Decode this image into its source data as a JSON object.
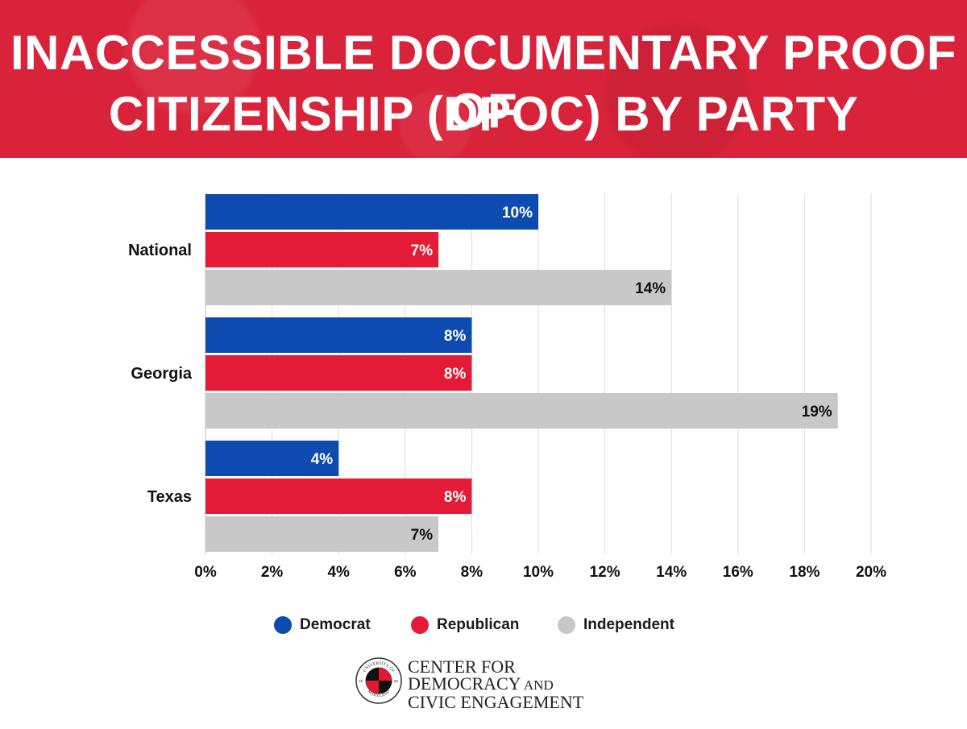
{
  "header": {
    "title_line1": "INACCESSIBLE DOCUMENTARY PROOF OF",
    "title_line2": "CITIZENSHIP (DPOC) BY PARTY"
  },
  "chart_data": {
    "type": "bar",
    "orientation": "horizontal",
    "title": "INACCESSIBLE DOCUMENTARY PROOF OF CITIZENSHIP (DPOC) BY PARTY",
    "categories": [
      "National",
      "Georgia",
      "Texas"
    ],
    "series": [
      {
        "name": "Democrat",
        "color": "#0d4bb0",
        "values": [
          10,
          8,
          4
        ],
        "label_color": "#ffffff"
      },
      {
        "name": "Republican",
        "color": "#e31b36",
        "values": [
          7,
          8,
          8
        ],
        "label_color": "#ffffff"
      },
      {
        "name": "Independent",
        "color": "#c8c8c8",
        "values": [
          14,
          19,
          7
        ],
        "label_color": "#111111"
      }
    ],
    "xlim": [
      0,
      20
    ],
    "x_ticks": [
      "0%",
      "2%",
      "4%",
      "6%",
      "8%",
      "10%",
      "12%",
      "14%",
      "16%",
      "18%",
      "20%"
    ],
    "value_suffix": "%",
    "grid": true,
    "legend_position": "bottom-center"
  },
  "legend": {
    "democrat": "Democrat",
    "republican": "Republican",
    "independent": "Independent",
    "democrat_color": "#0d4bb0",
    "republican_color": "#e31b36",
    "independent_color": "#c8c8c8"
  },
  "footer": {
    "org_line1": "CENTER FOR",
    "org_line2_a": "DEMOCRACY",
    "org_line2_b": " AND",
    "org_line3": "CIVIC ENGAGEMENT"
  },
  "seal": {
    "top_text": "UNIVERSITY OF",
    "bottom_text": "MARYLAND",
    "year_left": "18",
    "year_right": "56"
  }
}
